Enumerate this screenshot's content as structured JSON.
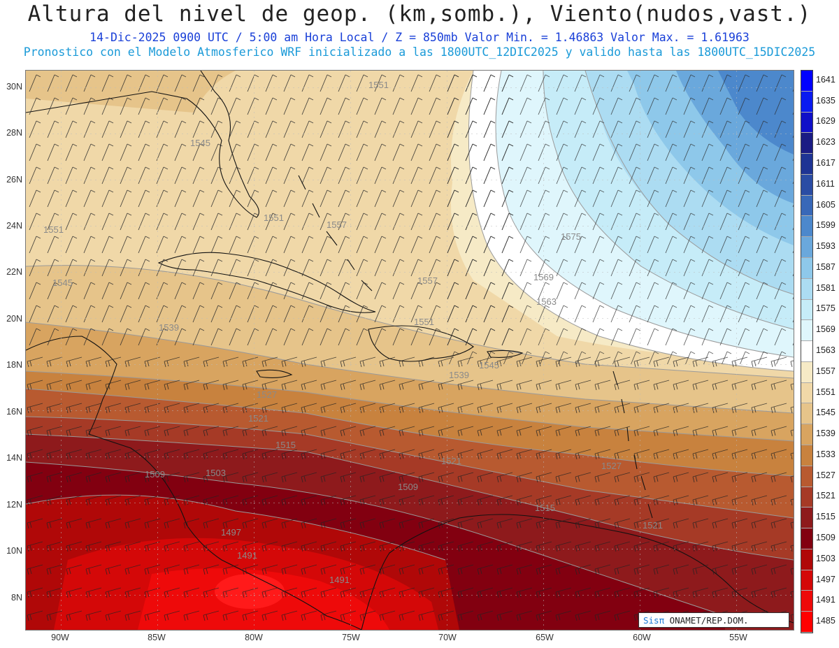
{
  "header": {
    "title": "Altura del nivel de geop. (km,somb.), Viento(nudos,vast.)",
    "line2": "14-Dic-2025   0900 UTC / 5:00 am Hora Local / Z = 850mb     Valor Min. = 1.46863  Valor Max. = 1.61963",
    "line3": "Pronostico con el Modelo Atmosferico WRF inicializado a las 1800UTC_12DIC2025 y valido hasta las  1800UTC_15DIC2025"
  },
  "lat_labels": [
    "30N",
    "28N",
    "26N",
    "24N",
    "22N",
    "20N",
    "18N",
    "16N",
    "14N",
    "12N",
    "10N",
    "8N"
  ],
  "lon_labels": [
    "90W",
    "85W",
    "80W",
    "75W",
    "70W",
    "65W",
    "60W",
    "55W"
  ],
  "colorbar": {
    "levels": [
      "1485",
      "1491",
      "1497",
      "1503",
      "1509",
      "1515",
      "1521",
      "1527",
      "1533",
      "1539",
      "1545",
      "1551",
      "1557",
      "1563",
      "1569",
      "1575",
      "1581",
      "1587",
      "1593",
      "1599",
      "1605",
      "1611",
      "1617",
      "1623",
      "1629",
      "1635",
      "1641"
    ],
    "colors": [
      "#ff0000",
      "#ee0a0a",
      "#d40808",
      "#b00808",
      "#820010",
      "#8e1a1c",
      "#a63a26",
      "#b85a30",
      "#c8823e",
      "#d8a460",
      "#e6c48a",
      "#f0d8a8",
      "#f6eac6",
      "#ffffff",
      "#dff6fc",
      "#c6ecf8",
      "#acdcf2",
      "#8ec8ea",
      "#6aa8dc",
      "#4c88cc",
      "#3868b8",
      "#2a4ca4",
      "#1e3494",
      "#1a1c84",
      "#1010c8",
      "#0a1af0",
      "#0000ff"
    ]
  },
  "contour_labels": [
    "1551",
    "1545",
    "1551",
    "1551",
    "1557",
    "1557",
    "1575",
    "1569",
    "1563",
    "1545",
    "1551",
    "1545",
    "1539",
    "1539",
    "1527",
    "1521",
    "1515",
    "1509",
    "1503",
    "1497",
    "1491",
    "1491",
    "1509",
    "1521",
    "1515",
    "1521",
    "1527"
  ],
  "credit": {
    "logo": "Sisπ",
    "text": " ONAMET/REP.DOM."
  }
}
